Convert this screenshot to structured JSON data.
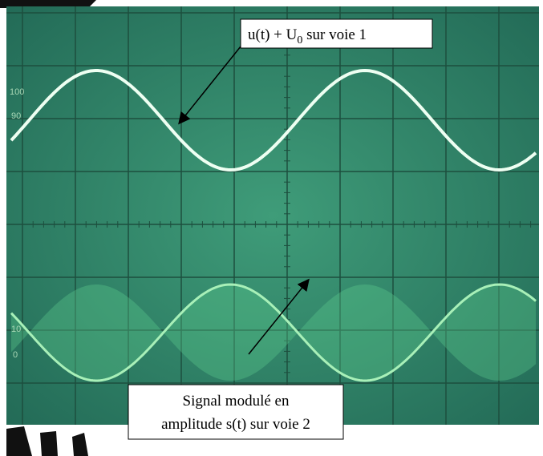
{
  "annotations": [
    {
      "text": "u(t) + U",
      "subscript": "0",
      "suffix": " sur voie 1"
    },
    {
      "lines": [
        "Signal modulé en",
        "amplitude s(t) sur voie 2"
      ]
    }
  ],
  "graticule_labels": [
    "100",
    "90",
    "10",
    "0"
  ]
}
